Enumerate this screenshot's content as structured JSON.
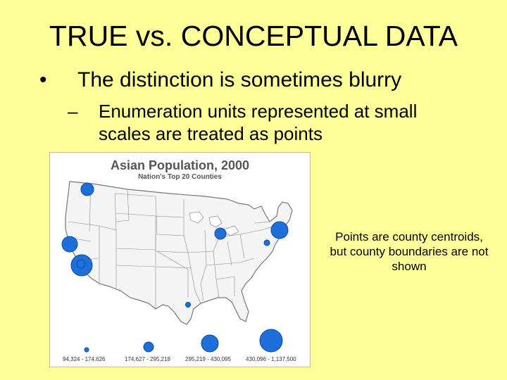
{
  "slide": {
    "title": "TRUE vs. CONCEPTUAL DATA",
    "bullet": {
      "mark": "•",
      "text": "The distinction is sometimes blurry"
    },
    "sub_bullet": {
      "mark": "–",
      "text": "Enumeration units represented at small scales are treated as points"
    }
  },
  "map": {
    "title": "Asian Population, 2000",
    "subtitle": "Nation's Top 20 Counties",
    "legend": [
      {
        "label": "94,324 - 174,626"
      },
      {
        "label": "174,627 - 295,218"
      },
      {
        "label": "295,219 - 430,095"
      },
      {
        "label": "430,096 - 1,137,500"
      }
    ],
    "colors": {
      "symbol": "#1e6fd9",
      "land": "#f4f4f4",
      "boundary": "#8a8a8a",
      "frame": "#c8b88a"
    }
  },
  "note": "Points are county centroids, but county boundaries are not shown"
}
